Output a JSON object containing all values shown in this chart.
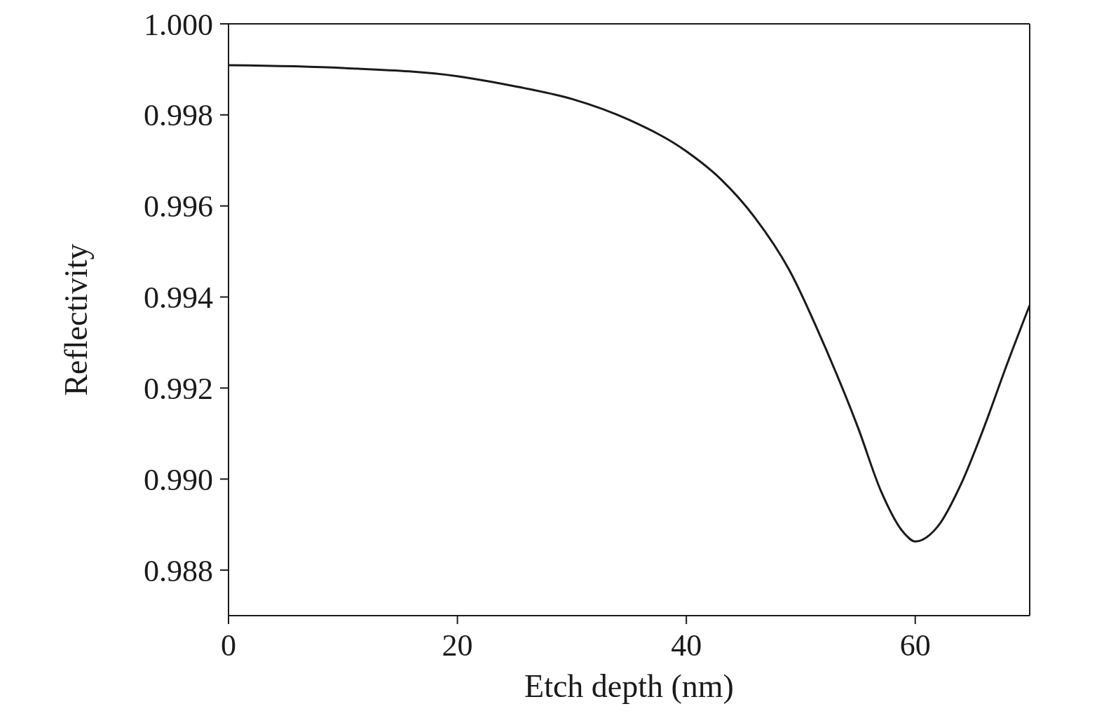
{
  "chart_data": {
    "type": "line",
    "xlabel": "Etch depth (nm)",
    "ylabel": "Reflectivity",
    "x": [
      0,
      10,
      20,
      25,
      30,
      35,
      40,
      43,
      46,
      49,
      52,
      55,
      57,
      59,
      60,
      62,
      64,
      66,
      68,
      70
    ],
    "series": [
      {
        "color": "#1a1a1a",
        "values": [
          0.99909,
          0.99903,
          0.99885,
          0.99863,
          0.99835,
          0.99789,
          0.9972,
          0.99659,
          0.99574,
          0.99459,
          0.99297,
          0.99113,
          0.98974,
          0.98882,
          0.98863,
          0.98897,
          0.98989,
          0.99113,
          0.99251,
          0.99382
        ]
      }
    ],
    "xlim": [
      0,
      70
    ],
    "xticks": [
      0,
      20,
      40,
      60
    ],
    "ylim": [
      0.987,
      1.0
    ],
    "yticks": [
      {
        "value": 0.988,
        "label": "0.988"
      },
      {
        "value": 0.99,
        "label": "0.990"
      },
      {
        "value": 0.992,
        "label": "0.992"
      },
      {
        "value": 0.994,
        "label": "0.994"
      },
      {
        "value": 0.996,
        "label": "0.996"
      },
      {
        "value": 0.998,
        "label": "0.998"
      },
      {
        "value": 1.0,
        "label": "1.000"
      }
    ],
    "grid": false,
    "marker": "none",
    "line_style": "solid"
  }
}
